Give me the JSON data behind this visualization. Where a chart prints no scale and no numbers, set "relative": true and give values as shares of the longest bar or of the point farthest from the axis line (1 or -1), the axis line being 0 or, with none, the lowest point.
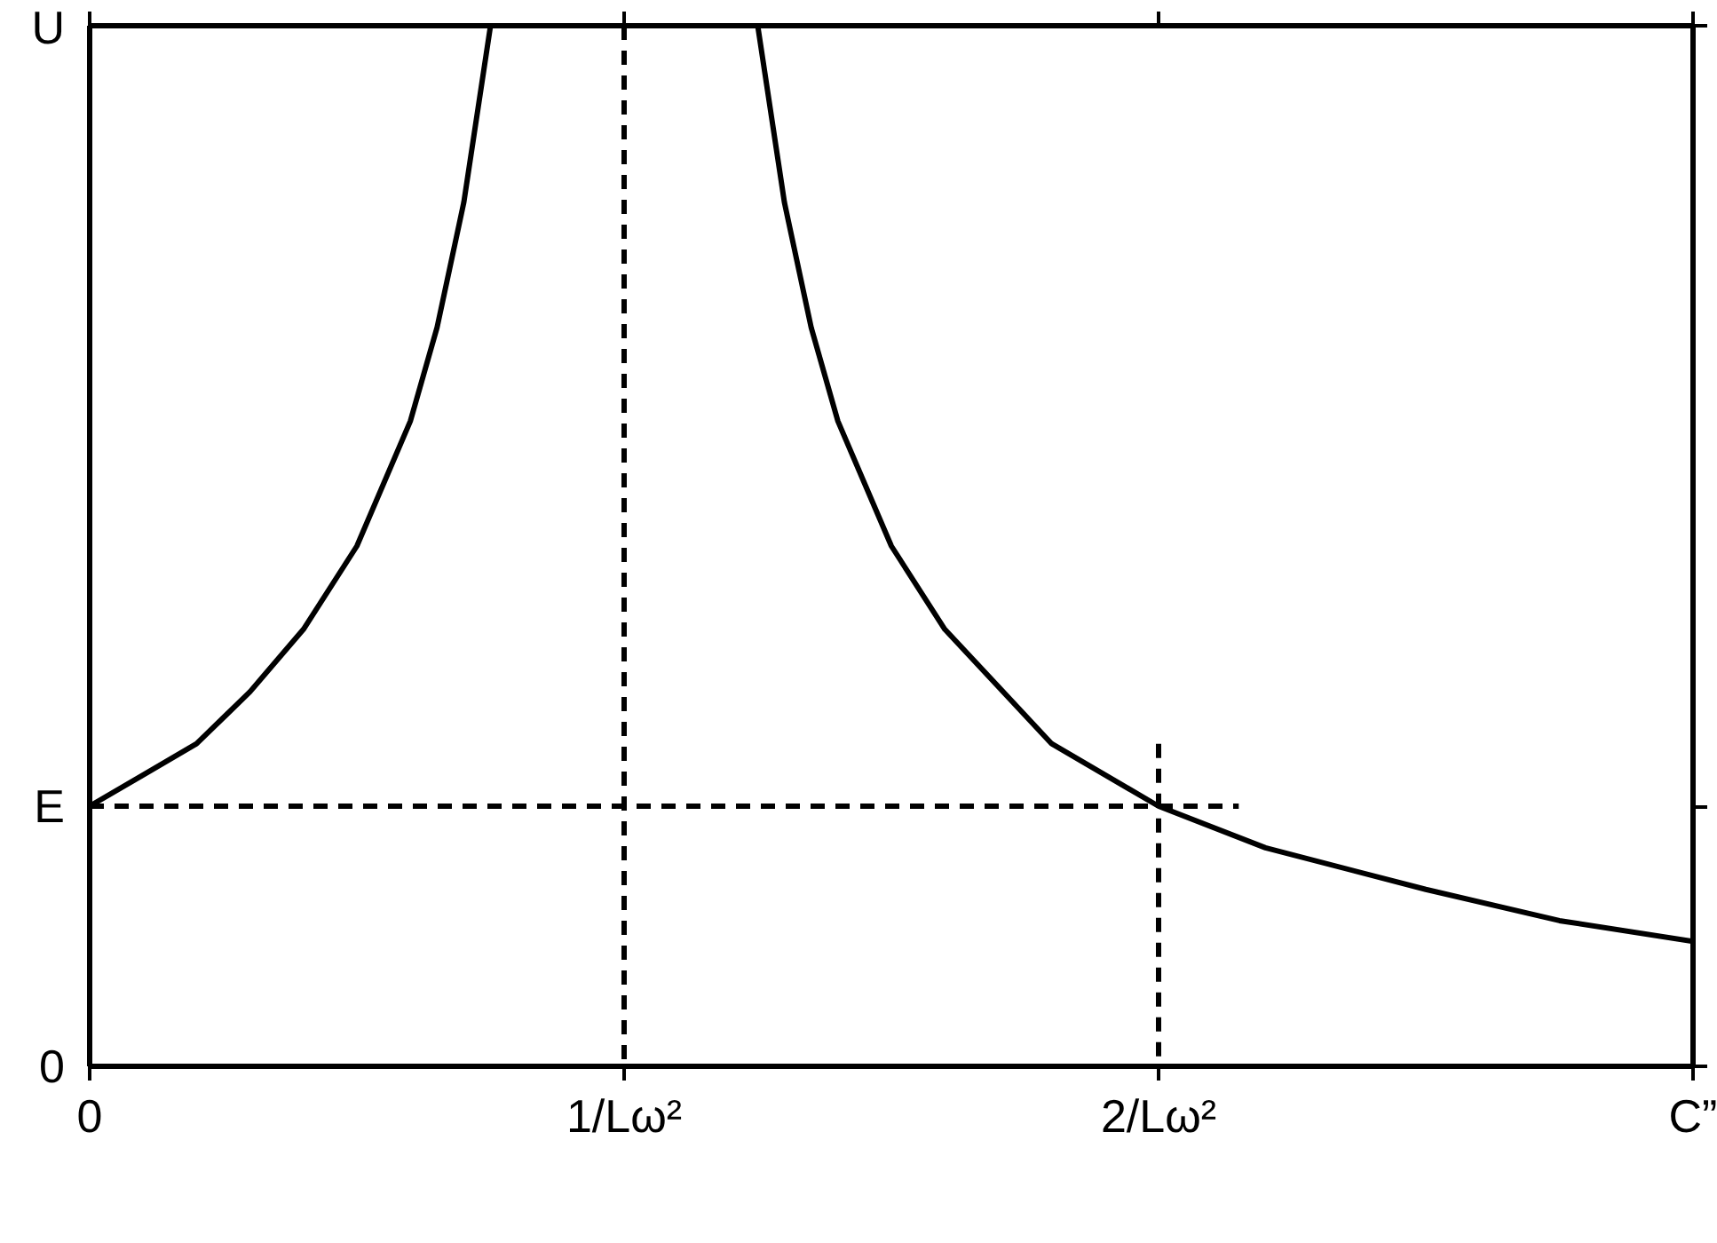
{
  "chart_data": {
    "type": "line",
    "xlabel": "C”",
    "ylabel": "U",
    "relative": true,
    "xlim": [
      0,
      3
    ],
    "xticks": [
      {
        "value": 0,
        "label": "0"
      },
      {
        "value": 1,
        "label": "1/Lω²"
      },
      {
        "value": 2,
        "label": "2/Lω²"
      },
      {
        "value": 3,
        "label": null
      }
    ],
    "annotations": [
      "0"
    ],
    "grid": false,
    "legend": false,
    "marker": "none",
    "series": [
      {
        "color": "#000000",
        "line_style": "solid",
        "x": [
          0,
          0.1,
          0.2,
          0.3,
          0.4,
          0.5,
          0.6,
          0.65,
          0.7,
          0.75,
          1.0,
          1.25,
          1.3,
          1.35,
          1.4,
          1.5,
          1.6,
          1.8,
          2.0,
          2.2,
          2.5,
          2.75,
          3.0
        ],
        "values": [
          0.25,
          0.28,
          0.31,
          0.36,
          0.42,
          0.5,
          0.62,
          0.71,
          0.83,
          1.0,
          null,
          1.0,
          0.83,
          0.71,
          0.62,
          0.5,
          0.42,
          0.31,
          0.25,
          0.21,
          0.17,
          0.14,
          0.12
        ]
      },
      {
        "name": "E",
        "color": "#000000",
        "line_style": "dashed",
        "x": [
          0,
          2.15
        ],
        "values": [
          0.25,
          0.25
        ]
      },
      {
        "color": "#000000",
        "line_style": "dashed",
        "x": [
          2,
          2
        ],
        "values": [
          0.31,
          0
        ]
      }
    ],
    "ref_lines": [
      {
        "axis": "x",
        "value": 1,
        "label": null,
        "color": "#000000",
        "line_style": "dashed"
      }
    ]
  }
}
